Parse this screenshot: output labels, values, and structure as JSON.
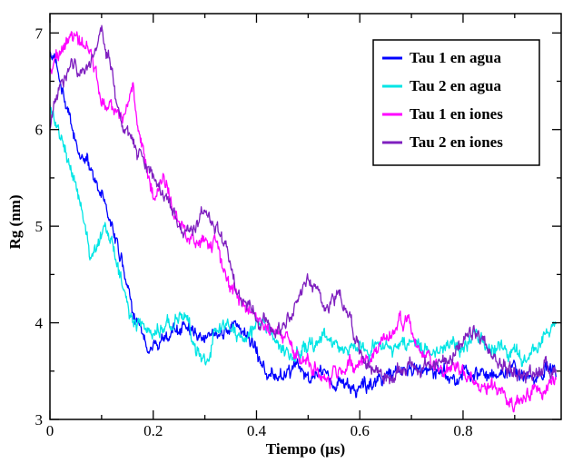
{
  "chart_data": {
    "type": "line",
    "title": "",
    "xlabel": "Tiempo (µs)",
    "ylabel": "Rg (nm)",
    "xlim": [
      0,
      0.99
    ],
    "ylim": [
      3,
      7.2
    ],
    "x_ticks": [
      {
        "value": 0,
        "label": "0"
      },
      {
        "value": 0.2,
        "label": "0.2"
      },
      {
        "value": 0.4,
        "label": "0.4"
      },
      {
        "value": 0.6,
        "label": "0.6"
      },
      {
        "value": 0.8,
        "label": "0.8"
      }
    ],
    "y_ticks": [
      {
        "value": 3,
        "label": "3"
      },
      {
        "value": 4,
        "label": "4"
      },
      {
        "value": 5,
        "label": "5"
      },
      {
        "value": 6,
        "label": "6"
      },
      {
        "value": 7,
        "label": "7"
      }
    ],
    "grid": false,
    "legend_position": "top-right",
    "series": [
      {
        "name": "Tau 1 en agua",
        "color": "#0000ff",
        "x": [
          0,
          0.02,
          0.04,
          0.06,
          0.08,
          0.1,
          0.12,
          0.14,
          0.16,
          0.18,
          0.2,
          0.22,
          0.24,
          0.26,
          0.28,
          0.3,
          0.32,
          0.34,
          0.36,
          0.38,
          0.4,
          0.42,
          0.44,
          0.46,
          0.48,
          0.5,
          0.52,
          0.54,
          0.56,
          0.58,
          0.6,
          0.62,
          0.64,
          0.66,
          0.68,
          0.7,
          0.72,
          0.74,
          0.76,
          0.78,
          0.8,
          0.82,
          0.84,
          0.86,
          0.88,
          0.9,
          0.92,
          0.94,
          0.96,
          0.98
        ],
        "y": [
          6.8,
          6.5,
          6.0,
          5.7,
          5.6,
          5.3,
          5.0,
          4.6,
          4.1,
          3.8,
          3.8,
          3.85,
          3.9,
          3.95,
          3.9,
          3.85,
          3.9,
          3.95,
          4.0,
          3.85,
          3.7,
          3.5,
          3.45,
          3.5,
          3.55,
          3.45,
          3.5,
          3.35,
          3.4,
          3.35,
          3.3,
          3.35,
          3.4,
          3.5,
          3.45,
          3.55,
          3.5,
          3.45,
          3.5,
          3.45,
          3.5,
          3.45,
          3.5,
          3.45,
          3.5,
          3.55,
          3.5,
          3.45,
          3.55,
          3.5
        ]
      },
      {
        "name": "Tau 2 en agua",
        "color": "#00e5e5",
        "x": [
          0,
          0.02,
          0.04,
          0.06,
          0.08,
          0.1,
          0.12,
          0.14,
          0.16,
          0.18,
          0.2,
          0.22,
          0.24,
          0.26,
          0.28,
          0.3,
          0.32,
          0.34,
          0.36,
          0.38,
          0.4,
          0.42,
          0.44,
          0.46,
          0.48,
          0.5,
          0.52,
          0.54,
          0.56,
          0.58,
          0.6,
          0.62,
          0.64,
          0.66,
          0.68,
          0.7,
          0.72,
          0.74,
          0.76,
          0.78,
          0.8,
          0.82,
          0.84,
          0.86,
          0.88,
          0.9,
          0.92,
          0.94,
          0.96,
          0.98
        ],
        "y": [
          6.3,
          5.9,
          5.6,
          5.2,
          4.7,
          5.0,
          4.9,
          4.4,
          4.0,
          4.0,
          3.9,
          3.95,
          4.0,
          4.1,
          3.8,
          3.6,
          3.9,
          4.0,
          3.85,
          3.8,
          4.0,
          3.9,
          3.8,
          3.7,
          3.65,
          3.8,
          3.85,
          3.8,
          3.75,
          3.7,
          3.8,
          3.7,
          3.8,
          3.75,
          3.7,
          3.8,
          3.75,
          3.7,
          3.75,
          3.8,
          3.75,
          3.85,
          3.8,
          3.75,
          3.7,
          3.65,
          3.6,
          3.7,
          3.85,
          3.95
        ]
      },
      {
        "name": "Tau 1 en iones",
        "color": "#ff00ff",
        "x": [
          0,
          0.02,
          0.04,
          0.06,
          0.08,
          0.1,
          0.12,
          0.14,
          0.16,
          0.18,
          0.2,
          0.22,
          0.24,
          0.26,
          0.28,
          0.3,
          0.32,
          0.34,
          0.36,
          0.38,
          0.4,
          0.42,
          0.44,
          0.46,
          0.48,
          0.5,
          0.52,
          0.54,
          0.56,
          0.58,
          0.6,
          0.62,
          0.64,
          0.66,
          0.68,
          0.7,
          0.72,
          0.74,
          0.76,
          0.78,
          0.8,
          0.82,
          0.84,
          0.86,
          0.88,
          0.9,
          0.92,
          0.94,
          0.96,
          0.98
        ],
        "y": [
          6.6,
          6.8,
          7.0,
          6.9,
          6.8,
          6.3,
          6.2,
          6.1,
          6.4,
          5.8,
          5.3,
          5.5,
          5.1,
          5.0,
          4.8,
          4.9,
          4.8,
          4.5,
          4.3,
          4.2,
          4.1,
          4.0,
          3.9,
          3.8,
          3.7,
          3.6,
          3.5,
          3.4,
          3.5,
          3.6,
          3.55,
          3.65,
          3.8,
          3.9,
          4.05,
          3.9,
          3.7,
          3.55,
          3.5,
          3.55,
          3.45,
          3.4,
          3.35,
          3.3,
          3.35,
          3.2,
          3.25,
          3.3,
          3.35,
          3.4
        ]
      },
      {
        "name": "Tau 2 en iones",
        "color": "#7f1fbf",
        "x": [
          0,
          0.02,
          0.04,
          0.06,
          0.08,
          0.1,
          0.12,
          0.14,
          0.16,
          0.18,
          0.2,
          0.22,
          0.24,
          0.26,
          0.28,
          0.3,
          0.32,
          0.34,
          0.36,
          0.38,
          0.4,
          0.42,
          0.44,
          0.46,
          0.48,
          0.5,
          0.52,
          0.54,
          0.56,
          0.58,
          0.6,
          0.62,
          0.64,
          0.66,
          0.68,
          0.7,
          0.72,
          0.74,
          0.76,
          0.78,
          0.8,
          0.82,
          0.84,
          0.86,
          0.88,
          0.9,
          0.92,
          0.94,
          0.96,
          0.98
        ],
        "y": [
          6.0,
          6.5,
          6.7,
          6.6,
          6.7,
          7.0,
          6.6,
          6.0,
          5.9,
          5.7,
          5.5,
          5.3,
          5.1,
          4.9,
          5.0,
          5.2,
          5.0,
          4.8,
          4.3,
          4.2,
          4.1,
          4.0,
          3.9,
          4.1,
          4.2,
          4.5,
          4.3,
          4.2,
          4.3,
          4.1,
          3.7,
          3.55,
          3.5,
          3.4,
          3.5,
          3.6,
          3.5,
          3.55,
          3.6,
          3.7,
          3.75,
          3.9,
          3.8,
          3.6,
          3.55,
          3.5,
          3.45,
          3.5,
          3.55,
          3.5
        ]
      }
    ]
  }
}
